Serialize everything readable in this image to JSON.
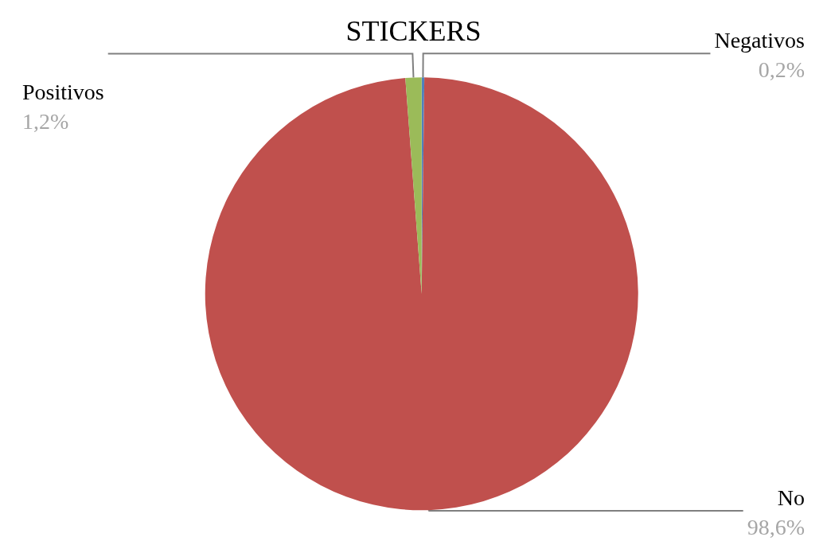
{
  "chart_data": {
    "type": "pie",
    "title": "STICKERS",
    "categories": [
      "Negativos",
      "No",
      "Positivos"
    ],
    "values": [
      0.2,
      98.6,
      1.2
    ],
    "colors": [
      "#4f81bd",
      "#c0504d",
      "#9bbb59"
    ],
    "value_labels": [
      "0,2%",
      "98,6%",
      "1,2%"
    ],
    "legend": false
  }
}
